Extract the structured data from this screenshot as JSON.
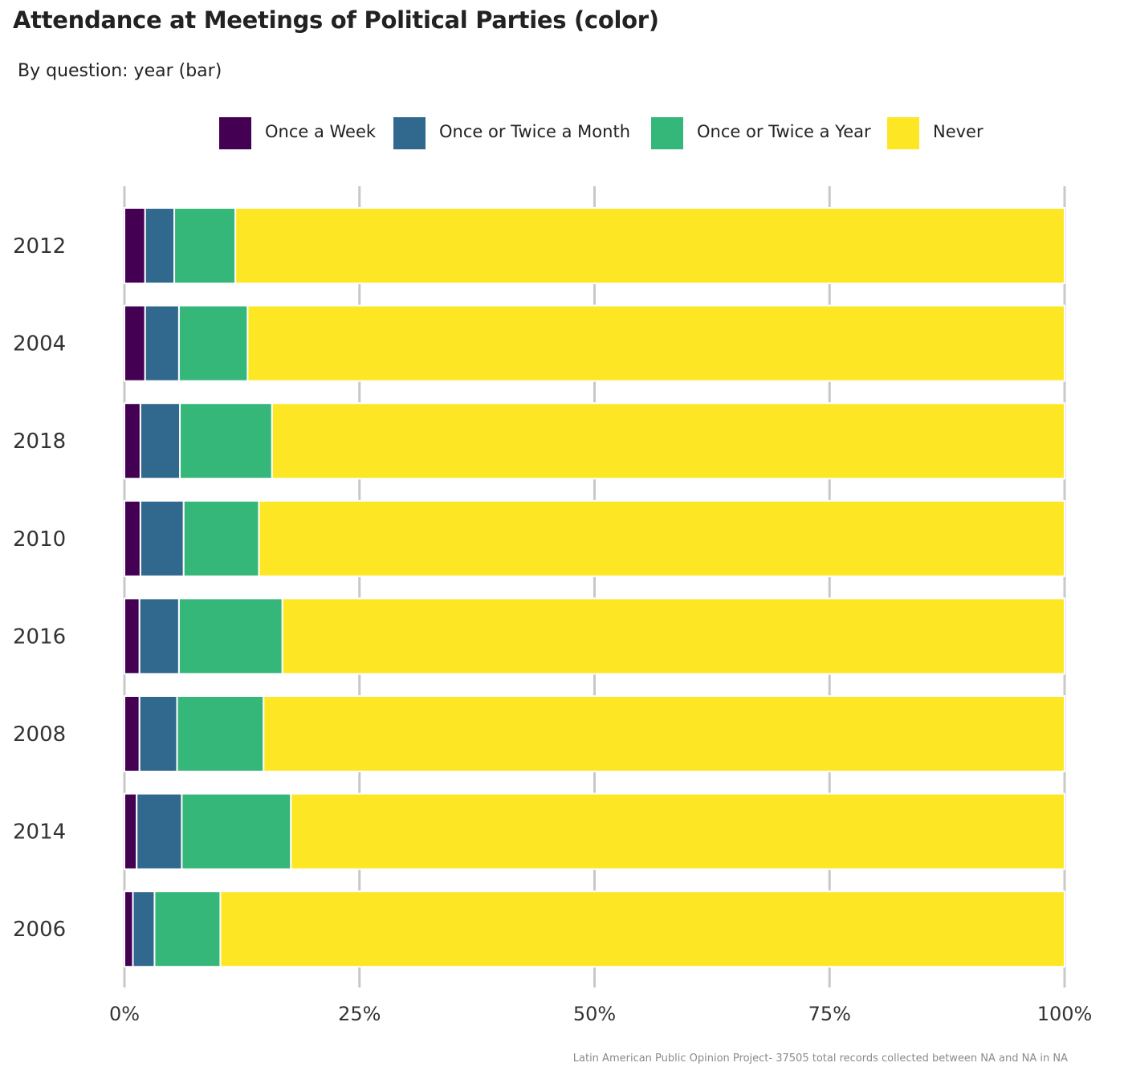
{
  "title": "Attendance at Meetings of Political Parties (color)",
  "subtitle": "By question: year (bar)",
  "caption": "Latin American Public Opinion Project- 37505 total records collected between NA and NA in  NA",
  "legend": [
    {
      "label": "Once a Week",
      "color": "#440154"
    },
    {
      "label": "Once or Twice a Month",
      "color": "#31688E"
    },
    {
      "label": "Once or Twice a Year",
      "color": "#35B779"
    },
    {
      "label": "Never",
      "color": "#FDE725"
    }
  ],
  "chart_data": {
    "type": "bar",
    "orientation": "horizontal",
    "stacked": true,
    "percent": true,
    "categories": [
      "2012",
      "2004",
      "2018",
      "2010",
      "2016",
      "2008",
      "2014",
      "2006"
    ],
    "series": [
      {
        "name": "Once a Week",
        "color": "#440154",
        "values": [
          2.2,
          2.2,
          1.7,
          1.7,
          1.6,
          1.6,
          1.3,
          0.9
        ]
      },
      {
        "name": "Once or Twice a Month",
        "color": "#31688E",
        "values": [
          3.1,
          3.6,
          4.2,
          4.6,
          4.2,
          4.0,
          4.8,
          2.3
        ]
      },
      {
        "name": "Once or Twice a Year",
        "color": "#35B779",
        "values": [
          6.5,
          7.3,
          9.8,
          8.0,
          11.0,
          9.2,
          11.6,
          7.0
        ]
      },
      {
        "name": "Never",
        "color": "#FDE725",
        "values": [
          88.2,
          86.9,
          84.3,
          85.7,
          83.2,
          85.2,
          82.3,
          89.8
        ]
      }
    ],
    "xticks": [
      "0%",
      "25%",
      "50%",
      "75%",
      "100%"
    ],
    "xlim": [
      0,
      100
    ],
    "grid": "vertical",
    "legend_position": "top"
  }
}
